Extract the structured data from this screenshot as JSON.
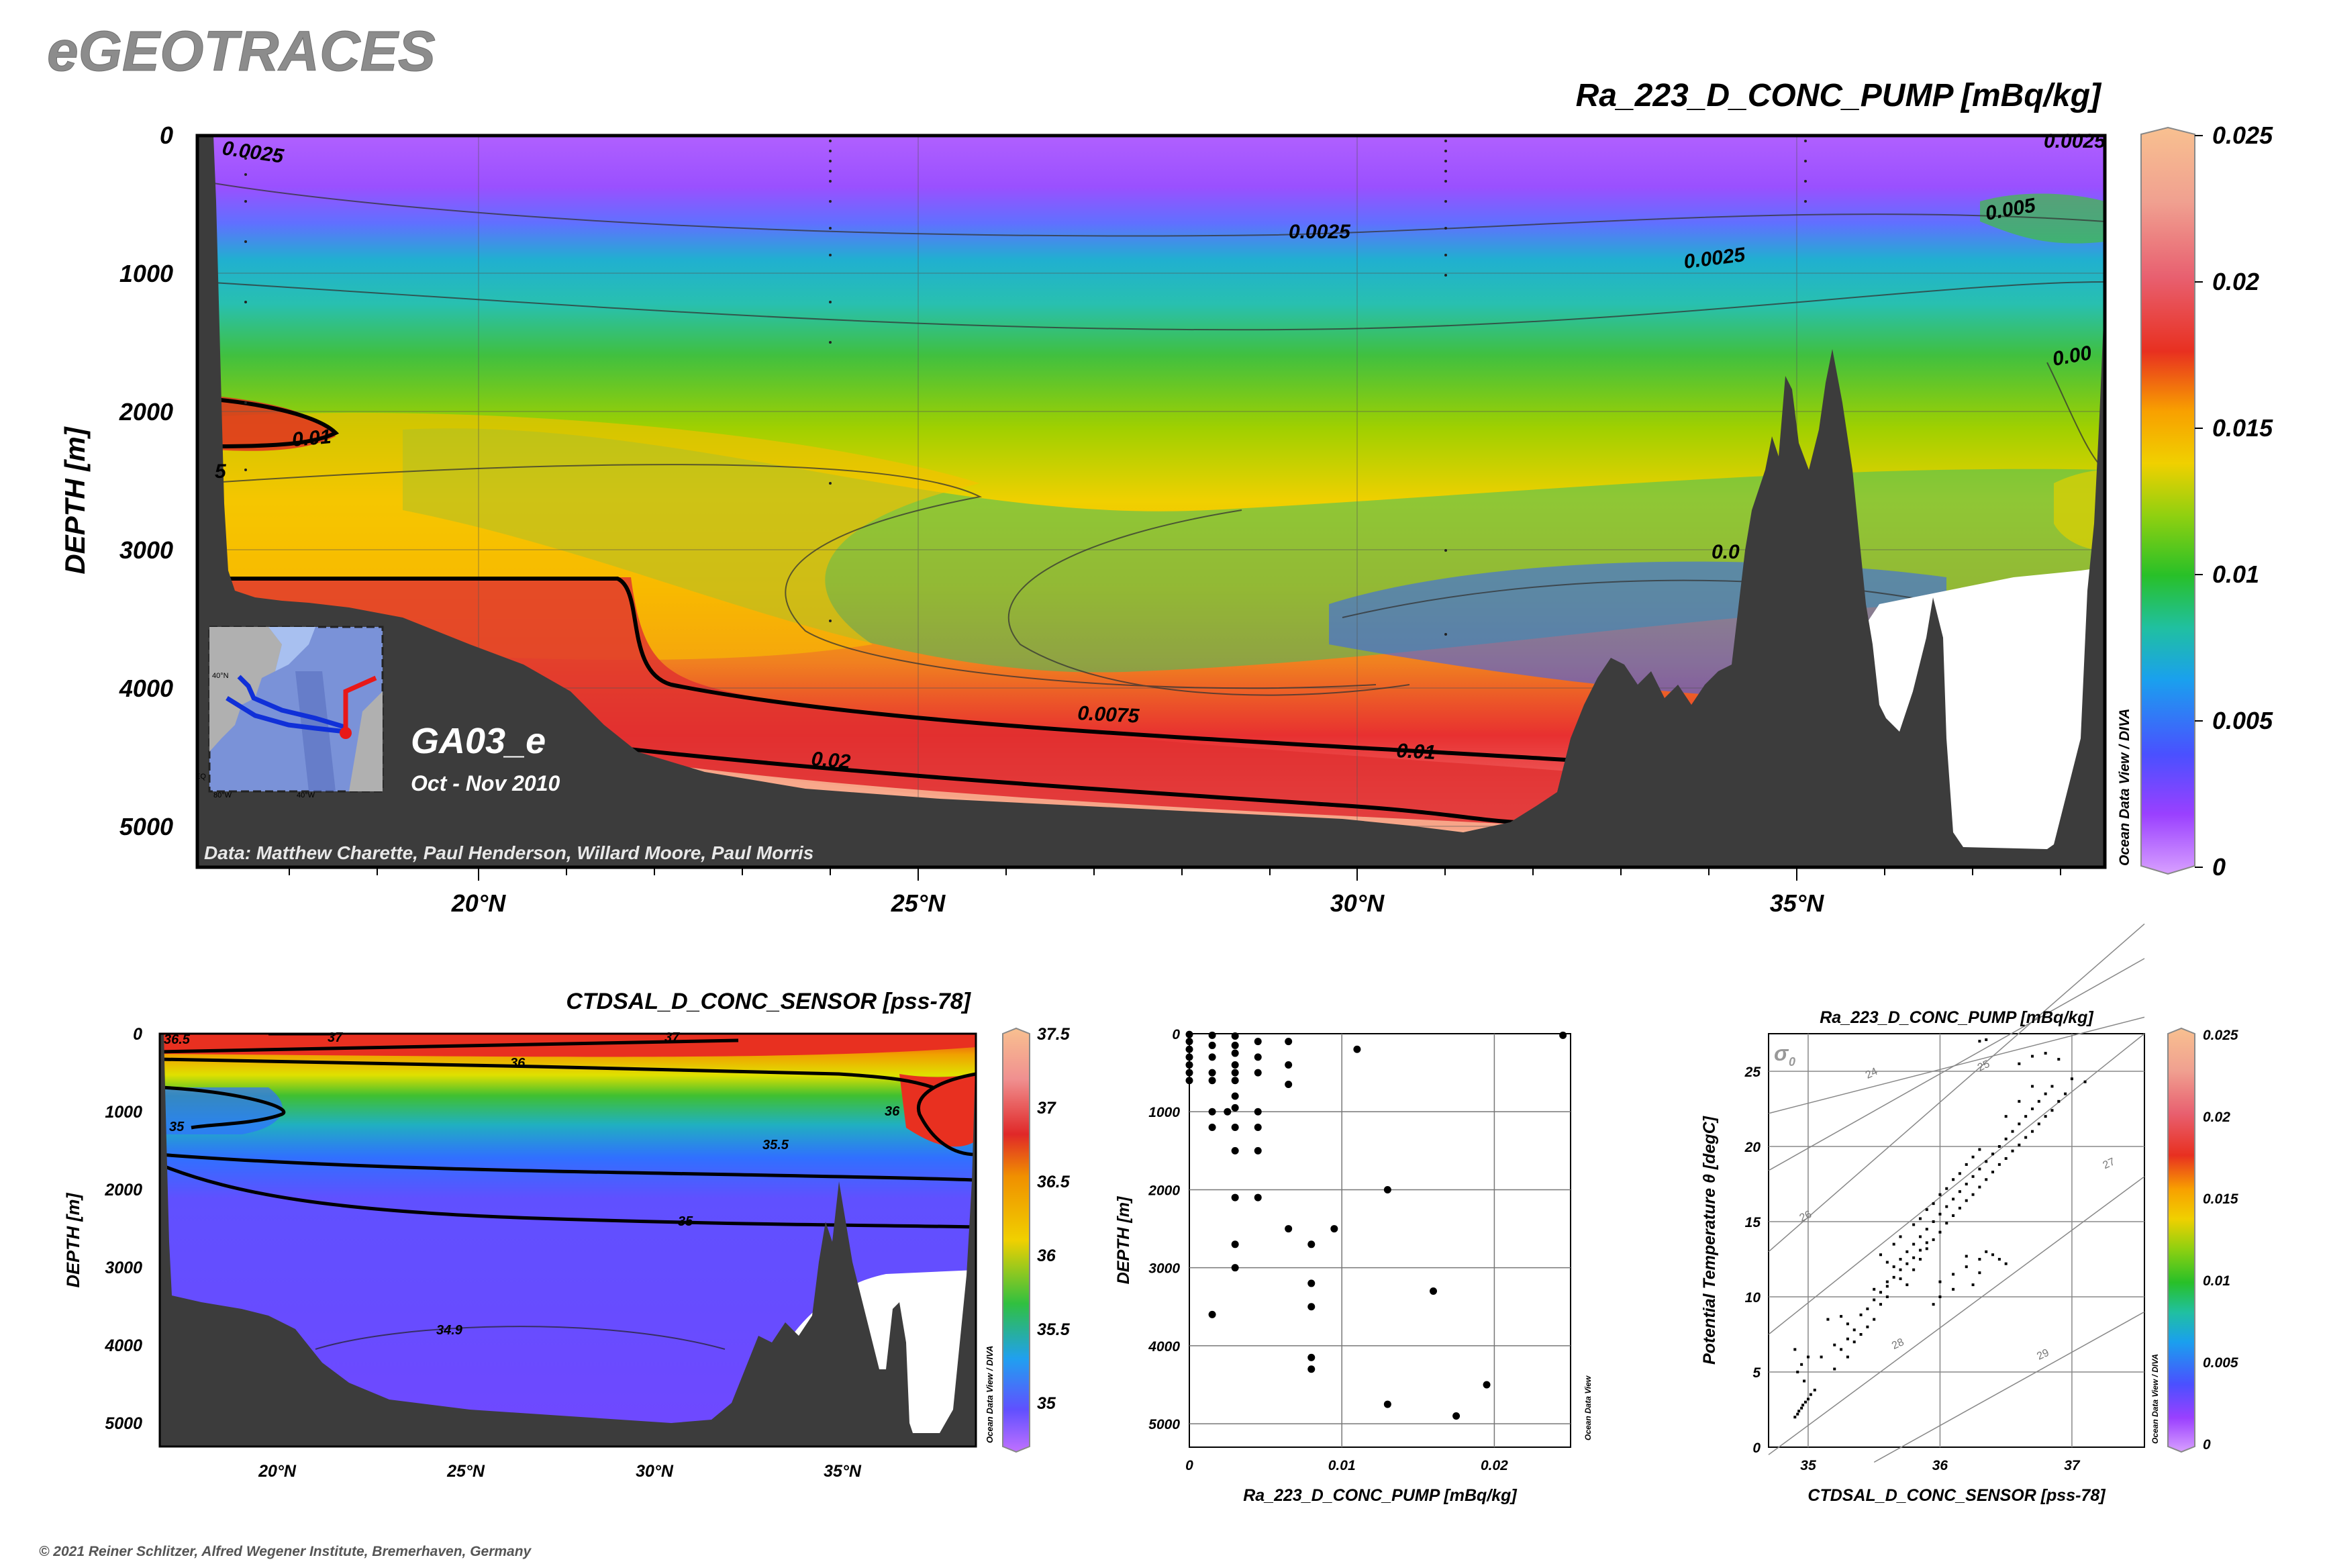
{
  "header": {
    "logo_text": "eGEOTRACES",
    "copyright": "© 2021 Reiner Schlitzer, Alfred Wegener Institute, Bremerhaven, Germany"
  },
  "main_section": {
    "variable_title": "Ra_223_D_CONC_PUMP [mBq/kg]",
    "ylabel": "DEPTH [m]",
    "station_label": "GA03_e",
    "date_label": "Oct - Nov 2010",
    "credits": "Data: Matthew Charette, Paul Henderson, Willard Moore, Paul Morris",
    "watermark": "Ocean Data View / DIVA",
    "depth_ticks": [
      "0",
      "1000",
      "2000",
      "3000",
      "4000",
      "5000"
    ],
    "lat_ticks": [
      "20°N",
      "25°N",
      "30°N",
      "35°N"
    ],
    "colorbar_ticks": [
      "0.025",
      "0.02",
      "0.015",
      "0.01",
      "0.005",
      "0"
    ],
    "contour_labels": [
      "0.0025",
      "0.0025",
      "0.0025",
      "0.005",
      "0.00",
      "0.01",
      "5",
      "0.0075",
      "0.02",
      "0.01",
      "0.0",
      "0.0025"
    ],
    "map_labels": [
      "40°N",
      "80°W",
      "40°W",
      "EQ"
    ]
  },
  "salinity_section": {
    "variable_title": "CTDSAL_D_CONC_SENSOR [pss-78]",
    "ylabel": "DEPTH [m]",
    "watermark": "Ocean Data View / DIVA",
    "depth_ticks": [
      "0",
      "1000",
      "2000",
      "3000",
      "4000",
      "5000"
    ],
    "lat_ticks": [
      "20°N",
      "25°N",
      "30°N",
      "35°N"
    ],
    "colorbar_ticks": [
      "37.5",
      "37",
      "36.5",
      "36",
      "35.5",
      "35"
    ],
    "contour_labels": [
      "36.5",
      "37",
      "37",
      "36",
      "36",
      "35",
      "35.5",
      "35",
      "34.9"
    ]
  },
  "colors": {
    "land": "#3c3c3c",
    "track_blue": "#1030d8",
    "track_red": "#e81818"
  },
  "chart_data": [
    {
      "type": "heatmap",
      "title": "Ra_223_D_CONC_PUMP [mBq/kg]",
      "xlabel": "",
      "ylabel": "DEPTH [m]",
      "x_ticks": [
        "20°N",
        "25°N",
        "30°N",
        "35°N"
      ],
      "xlim_latN": [
        16.8,
        38.5
      ],
      "ylim_depth_m": [
        5300,
        0
      ],
      "colorbar_range": [
        0,
        0.025
      ],
      "colorbar_ticks": [
        0,
        0.005,
        0.01,
        0.015,
        0.02,
        0.025
      ],
      "grid": true
    },
    {
      "type": "heatmap",
      "title": "CTDSAL_D_CONC_SENSOR [pss-78]",
      "xlabel": "",
      "ylabel": "DEPTH [m]",
      "x_ticks": [
        "20°N",
        "25°N",
        "30°N",
        "35°N"
      ],
      "xlim_latN": [
        16.8,
        38.5
      ],
      "ylim_depth_m": [
        5300,
        0
      ],
      "colorbar_range": [
        34.8,
        37.5
      ],
      "colorbar_ticks": [
        35,
        35.5,
        36,
        36.5,
        37,
        37.5
      ],
      "grid": false
    },
    {
      "type": "scatter",
      "title": "",
      "xlabel": "Ra_223_D_CONC_PUMP [mBq/kg]",
      "ylabel": "DEPTH [m]",
      "watermark": "Ocean Data View",
      "xlim": [
        0,
        0.025
      ],
      "ylim": [
        5300,
        0
      ],
      "x_ticks": [
        "0",
        "0.01",
        "0.02"
      ],
      "y_ticks": [
        "0",
        "1000",
        "2000",
        "3000",
        "4000",
        "5000"
      ],
      "grid": true,
      "points": [
        [
          0,
          10
        ],
        [
          0,
          100
        ],
        [
          0,
          200
        ],
        [
          0,
          300
        ],
        [
          0,
          400
        ],
        [
          0,
          500
        ],
        [
          0,
          600
        ],
        [
          0.0015,
          20
        ],
        [
          0.0015,
          150
        ],
        [
          0.0015,
          300
        ],
        [
          0.0015,
          500
        ],
        [
          0.0015,
          600
        ],
        [
          0.0015,
          1000
        ],
        [
          0.0015,
          1200
        ],
        [
          0.0015,
          3600
        ],
        [
          0.003,
          30
        ],
        [
          0.003,
          150
        ],
        [
          0.003,
          250
        ],
        [
          0.003,
          400
        ],
        [
          0.003,
          500
        ],
        [
          0.003,
          600
        ],
        [
          0.003,
          800
        ],
        [
          0.003,
          950
        ],
        [
          0.003,
          1200
        ],
        [
          0.003,
          1500
        ],
        [
          0.003,
          2100
        ],
        [
          0.003,
          2700
        ],
        [
          0.003,
          3000
        ],
        [
          0.0025,
          1000
        ],
        [
          0.0045,
          500
        ],
        [
          0.0045,
          1000
        ],
        [
          0.0045,
          1200
        ],
        [
          0.0045,
          1500
        ],
        [
          0.0045,
          2100
        ],
        [
          0.0045,
          100
        ],
        [
          0.0045,
          300
        ],
        [
          0.0065,
          100
        ],
        [
          0.0065,
          400
        ],
        [
          0.0065,
          650
        ],
        [
          0.0065,
          2500
        ],
        [
          0.008,
          2700
        ],
        [
          0.008,
          3200
        ],
        [
          0.008,
          3500
        ],
        [
          0.008,
          4150
        ],
        [
          0.008,
          4300
        ],
        [
          0.0095,
          2500
        ],
        [
          0.011,
          200
        ],
        [
          0.013,
          2000
        ],
        [
          0.013,
          4750
        ],
        [
          0.016,
          3300
        ],
        [
          0.0175,
          4900
        ],
        [
          0.0195,
          4500
        ],
        [
          0.0245,
          20
        ]
      ]
    },
    {
      "type": "scatter",
      "title": "Ra_223_D_CONC_PUMP [mBq/kg]",
      "xlabel": "CTDSAL_D_CONC_SENSOR [pss-78]",
      "ylabel": "Potential Temperature θ [degC]",
      "watermark": "Ocean Data View / DIVA",
      "xlim": [
        34.7,
        37.55
      ],
      "ylim": [
        0,
        27.5
      ],
      "x_ticks": [
        "35",
        "36",
        "37"
      ],
      "y_ticks": [
        "0",
        "5",
        "10",
        "15",
        "20",
        "25"
      ],
      "sigma_label": "σ",
      "sigma_subscript": "0",
      "isopycnals": [
        "24",
        "25",
        "26",
        "27",
        "28",
        "29"
      ],
      "colorbar_ticks": [
        "0.025",
        "0.02",
        "0.015",
        "0.01",
        "0.005",
        "0"
      ],
      "grid": true,
      "points_desc": "T-S scatter, approx. 230 samples",
      "points": [
        [
          34.9,
          2.0
        ],
        [
          34.92,
          2.2
        ],
        [
          34.93,
          2.4
        ],
        [
          34.95,
          2.6
        ],
        [
          34.96,
          2.8
        ],
        [
          34.98,
          3.0
        ],
        [
          35.0,
          3.2
        ],
        [
          35.02,
          3.5
        ],
        [
          35.05,
          3.8
        ],
        [
          34.95,
          5.5
        ],
        [
          34.9,
          6.5
        ],
        [
          35.0,
          6.0
        ],
        [
          34.92,
          5.0
        ],
        [
          34.97,
          4.4
        ],
        [
          35.1,
          6.0
        ],
        [
          35.2,
          5.2
        ],
        [
          35.25,
          6.5
        ],
        [
          35.3,
          6.0
        ],
        [
          35.35,
          7.0
        ],
        [
          35.15,
          8.5
        ],
        [
          35.25,
          8.7
        ],
        [
          35.3,
          8.2
        ],
        [
          35.4,
          7.5
        ],
        [
          35.45,
          8.0
        ],
        [
          35.5,
          8.5
        ],
        [
          35.55,
          9.5
        ],
        [
          35.6,
          10.0
        ],
        [
          35.6,
          11.0
        ],
        [
          35.65,
          12.0
        ],
        [
          35.7,
          12.5
        ],
        [
          35.75,
          13.0
        ],
        [
          35.8,
          13.5
        ],
        [
          35.85,
          14.0
        ],
        [
          35.9,
          14.5
        ],
        [
          35.95,
          15.0
        ],
        [
          36.0,
          15.5
        ],
        [
          36.05,
          16.0
        ],
        [
          36.1,
          16.5
        ],
        [
          36.15,
          17.0
        ],
        [
          36.2,
          17.5
        ],
        [
          36.25,
          18.0
        ],
        [
          36.3,
          18.5
        ],
        [
          36.35,
          19.0
        ],
        [
          36.4,
          19.5
        ],
        [
          36.45,
          20.0
        ],
        [
          36.5,
          20.5
        ],
        [
          36.55,
          21.0
        ],
        [
          36.6,
          21.5
        ],
        [
          36.65,
          22.0
        ],
        [
          36.7,
          22.5
        ],
        [
          36.75,
          23.0
        ],
        [
          36.8,
          23.5
        ],
        [
          36.85,
          24.0
        ],
        [
          37.0,
          24.5
        ],
        [
          37.1,
          24.3
        ],
        [
          35.5,
          10.5
        ],
        [
          35.6,
          12.3
        ],
        [
          35.7,
          11.2
        ],
        [
          35.75,
          10.8
        ],
        [
          35.8,
          11.8
        ],
        [
          35.85,
          12.5
        ],
        [
          35.9,
          13.2
        ],
        [
          35.95,
          13.8
        ],
        [
          36.0,
          14.3
        ],
        [
          36.05,
          14.9
        ],
        [
          36.1,
          15.4
        ],
        [
          36.15,
          15.9
        ],
        [
          36.2,
          16.4
        ],
        [
          36.25,
          16.8
        ],
        [
          36.3,
          17.3
        ],
        [
          36.35,
          17.8
        ],
        [
          36.4,
          18.3
        ],
        [
          36.45,
          18.8
        ],
        [
          36.5,
          19.2
        ],
        [
          36.55,
          19.7
        ],
        [
          36.6,
          20.1
        ],
        [
          36.65,
          20.6
        ],
        [
          36.7,
          21.0
        ],
        [
          36.75,
          21.5
        ],
        [
          36.8,
          22.0
        ],
        [
          36.85,
          22.4
        ],
        [
          36.9,
          23.0
        ],
        [
          36.95,
          23.5
        ],
        [
          36.0,
          11.0
        ],
        [
          36.1,
          11.5
        ],
        [
          36.2,
          12.0
        ],
        [
          36.3,
          12.5
        ],
        [
          36.4,
          12.8
        ],
        [
          36.5,
          12.2
        ],
        [
          36.3,
          11.6
        ],
        [
          36.2,
          12.7
        ],
        [
          36.35,
          13.0
        ],
        [
          36.45,
          12.5
        ],
        [
          36.25,
          10.8
        ],
        [
          36.1,
          10.5
        ],
        [
          36.0,
          10.0
        ],
        [
          35.95,
          9.5
        ],
        [
          36.6,
          25.5
        ],
        [
          36.7,
          26.0
        ],
        [
          36.8,
          26.2
        ],
        [
          36.9,
          25.8
        ],
        [
          36.5,
          22.0
        ],
        [
          36.6,
          23.0
        ],
        [
          36.7,
          24.0
        ],
        [
          36.3,
          27.0
        ],
        [
          36.35,
          27.1
        ],
        [
          35.55,
          12.8
        ],
        [
          35.65,
          13.5
        ],
        [
          35.7,
          14.0
        ],
        [
          35.8,
          14.8
        ],
        [
          35.85,
          15.2
        ],
        [
          35.9,
          15.8
        ],
        [
          35.95,
          16.2
        ],
        [
          36.0,
          16.8
        ],
        [
          36.05,
          17.2
        ],
        [
          36.1,
          17.8
        ],
        [
          36.15,
          18.2
        ],
        [
          36.2,
          18.8
        ],
        [
          36.25,
          19.3
        ],
        [
          36.3,
          19.8
        ],
        [
          35.2,
          6.8
        ],
        [
          35.3,
          7.2
        ],
        [
          35.35,
          7.8
        ],
        [
          35.4,
          8.8
        ],
        [
          35.45,
          9.2
        ],
        [
          35.5,
          9.8
        ],
        [
          35.55,
          10.3
        ],
        [
          35.6,
          10.7
        ],
        [
          35.65,
          11.3
        ],
        [
          35.7,
          11.8
        ],
        [
          35.75,
          12.2
        ],
        [
          35.8,
          12.6
        ],
        [
          35.85,
          13.1
        ],
        [
          35.9,
          13.6
        ]
      ]
    }
  ]
}
